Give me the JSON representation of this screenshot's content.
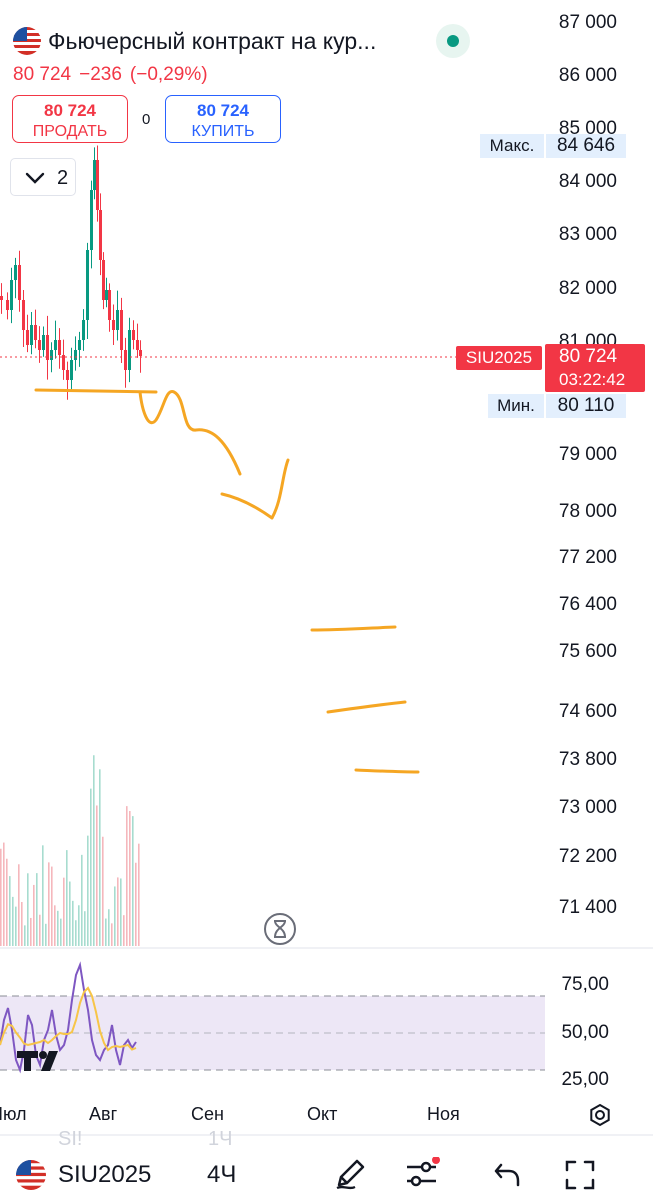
{
  "header": {
    "title": "Фьючерсный контракт на кур...",
    "price": "80 724",
    "change": "−236",
    "change_pct": "(−0,29%)",
    "status_color": "#089981"
  },
  "trade": {
    "sell_price": "80 724",
    "sell_label": "ПРОДАТЬ",
    "spread": "0",
    "buy_price": "80 724",
    "buy_label": "КУПИТЬ"
  },
  "indicators_toggle": {
    "count": "2",
    "icon": "chevron-down-icon"
  },
  "price_axis": {
    "labels": [
      "87 000",
      "86 000",
      "85 000",
      "84 000",
      "83 000",
      "82 000",
      "81 000",
      "79 000",
      "78 000",
      "77 200",
      "76 400",
      "75 600",
      "74 600",
      "73 800",
      "73 000",
      "72 200",
      "71 400"
    ],
    "max_label": "Макс.",
    "max_value": "84 646",
    "min_label": "Мин.",
    "min_value": "80 110",
    "symbol_tag": "SIU2025",
    "last_price": "80 724",
    "countdown": "03:22:42"
  },
  "rsi": {
    "labels": [
      "75,00",
      "50,00",
      "25,00"
    ],
    "band_color": "#ede7f6",
    "line_color": "#7e57c2",
    "signal_color": "#f7c548"
  },
  "time_axis": {
    "labels": [
      "Июл",
      "Авг",
      "Сен",
      "Окт",
      "Ноя"
    ],
    "settings_icon": "gear-icon"
  },
  "toolbar": {
    "faded_left": "SI!",
    "faded_right": "1Ч",
    "symbol": "SIU2025",
    "interval": "4Ч",
    "icons": [
      "pen-icon",
      "sliders-icon",
      "undo-icon",
      "fullscreen-icon"
    ]
  },
  "colors": {
    "down": "#f23645",
    "up": "#089981",
    "buy": "#2962ff",
    "drawing": "#f5a623"
  },
  "logo": "TV"
}
